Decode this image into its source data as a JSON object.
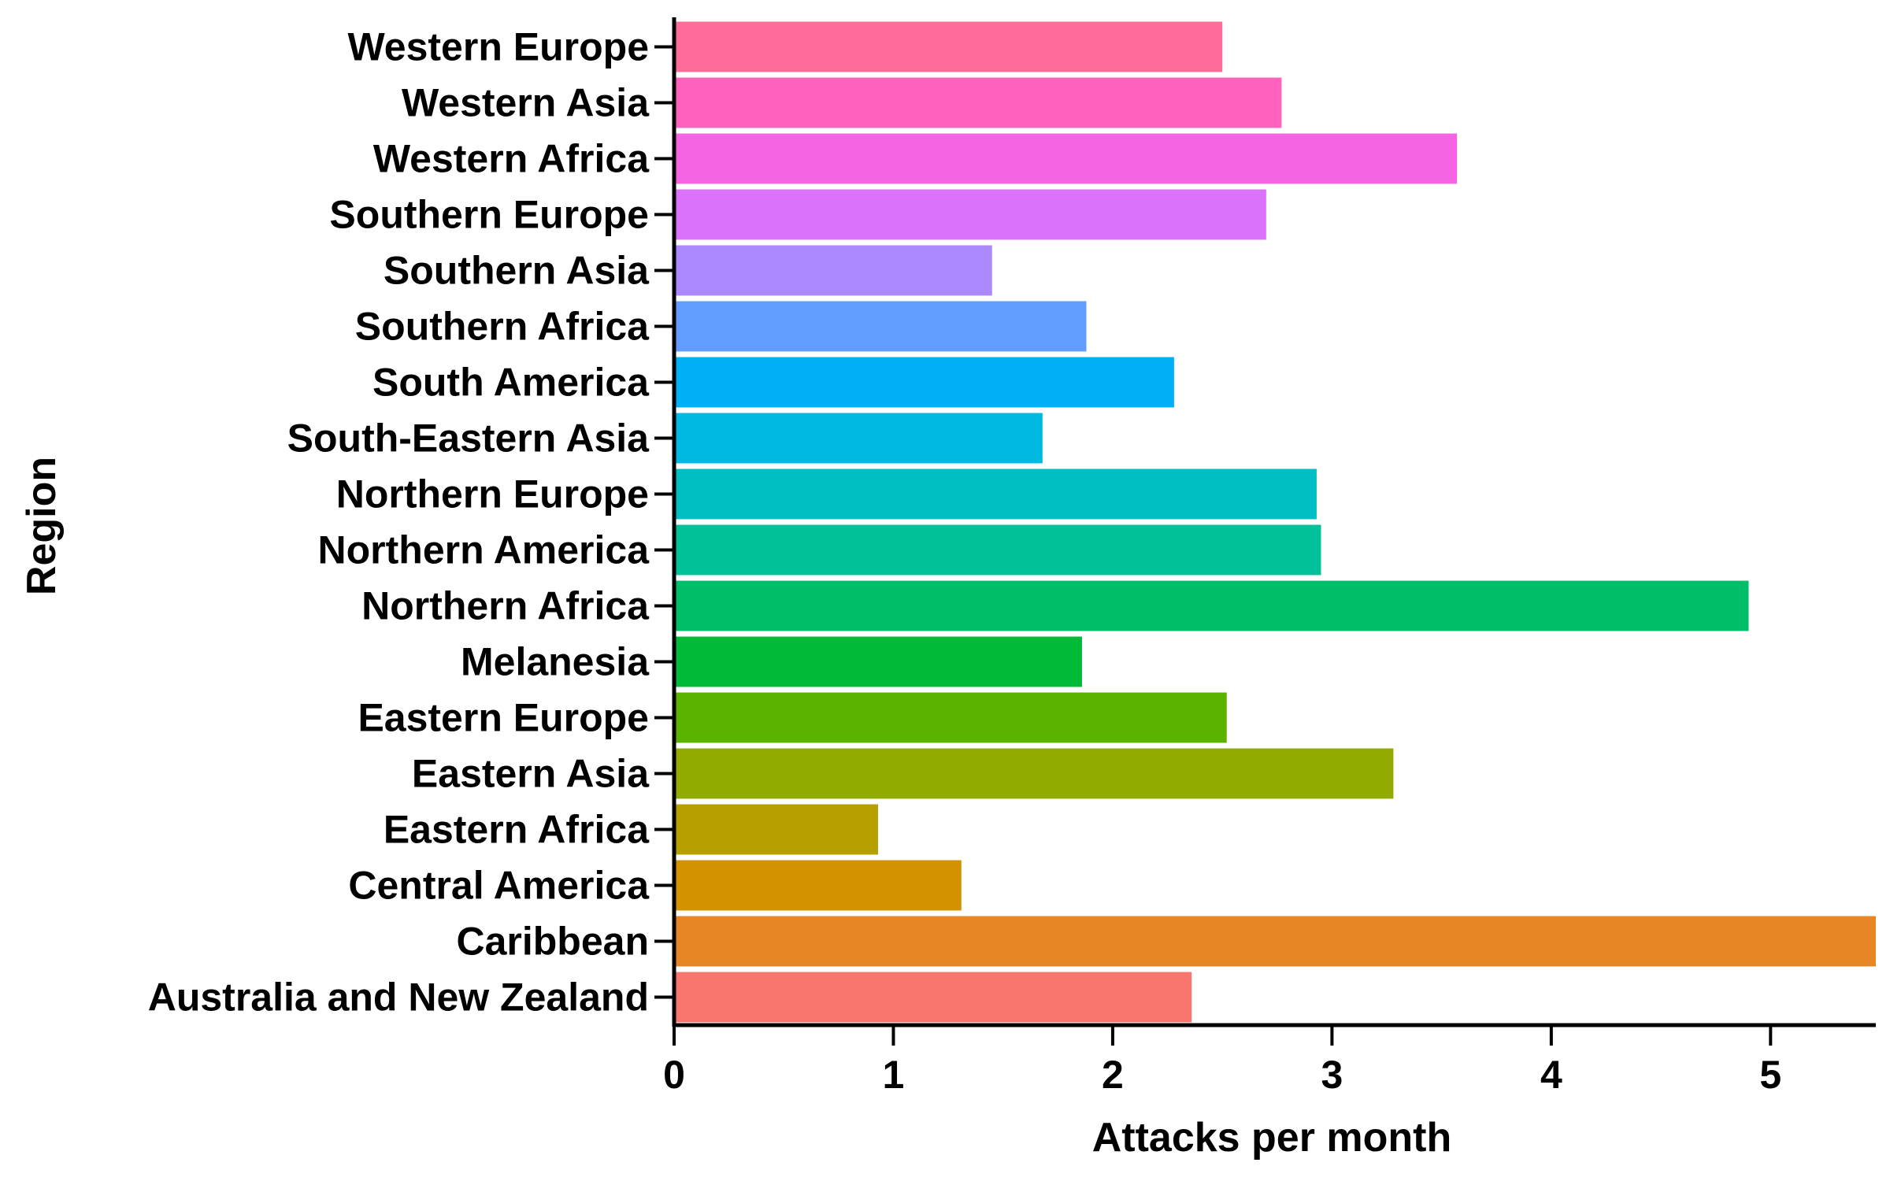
{
  "chart_data": {
    "type": "bar",
    "orientation": "horizontal",
    "xlabel": "Attacks per month",
    "ylabel": "Region",
    "xlim": [
      0,
      5.48
    ],
    "xticks": [
      0,
      1,
      2,
      3,
      4,
      5
    ],
    "grid": false,
    "legend": "none",
    "categories": [
      "Western Europe",
      "Western Asia",
      "Western Africa",
      "Southern Europe",
      "Southern Asia",
      "Southern Africa",
      "South America",
      "South-Eastern Asia",
      "Northern Europe",
      "Northern America",
      "Northern Africa",
      "Melanesia",
      "Eastern Europe",
      "Eastern Asia",
      "Eastern Africa",
      "Central America",
      "Caribbean",
      "Australia and New Zealand"
    ],
    "values": [
      2.5,
      2.77,
      3.57,
      2.7,
      1.45,
      1.88,
      2.28,
      1.68,
      2.93,
      2.95,
      4.9,
      1.86,
      2.52,
      3.28,
      0.93,
      1.31,
      5.48,
      2.36
    ],
    "colors": [
      "#FF6C99",
      "#FF62BC",
      "#F564E3",
      "#DB72FB",
      "#AC88FF",
      "#619CFF",
      "#00B0F6",
      "#00B9E3",
      "#00BFC4",
      "#00C19A",
      "#00BE67",
      "#00BA38",
      "#5BB300",
      "#93AA00",
      "#B79F00",
      "#D39200",
      "#E88526",
      "#F8766D"
    ]
  }
}
